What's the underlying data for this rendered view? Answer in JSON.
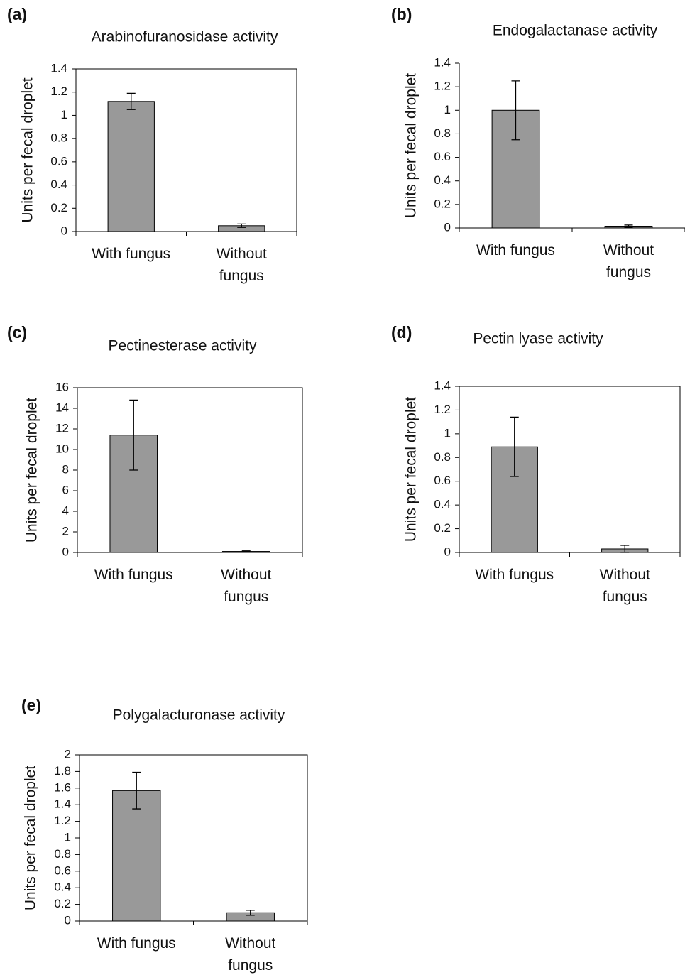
{
  "chart_data": [
    {
      "type": "bar",
      "panel": "(a)",
      "title": "Arabinofuranosidase activity",
      "ylabel": "Units per fecal droplet",
      "categories": [
        "With fungus",
        "Without fungus"
      ],
      "values": [
        1.12,
        0.05
      ],
      "errors": [
        0.07,
        0.015
      ],
      "color": "#999999",
      "ylim": [
        0,
        1.4
      ],
      "yticks": [
        0,
        0.2,
        0.4,
        0.6,
        0.8,
        1,
        1.2,
        1.4
      ],
      "frame": true
    },
    {
      "type": "bar",
      "panel": "(b)",
      "title": "Endogalactanase activity",
      "ylabel": "Units per fecal droplet",
      "categories": [
        "With fungus",
        "Without fungus"
      ],
      "values": [
        1.0,
        0.015
      ],
      "errors": [
        0.25,
        0.01
      ],
      "color": "#999999",
      "ylim": [
        0,
        1.4
      ],
      "yticks": [
        0,
        0.2,
        0.4,
        0.6,
        0.8,
        1,
        1.2,
        1.4
      ],
      "frame": false
    },
    {
      "type": "bar",
      "panel": "(c)",
      "title": "Pectinesterase activity",
      "ylabel": "Units per fecal droplet",
      "categories": [
        "With fungus",
        "Without fungus"
      ],
      "values": [
        11.4,
        0.1
      ],
      "errors": [
        3.4,
        0.05
      ],
      "color": "#999999",
      "ylim": [
        0,
        16
      ],
      "yticks": [
        0,
        2,
        4,
        6,
        8,
        10,
        12,
        14,
        16
      ],
      "frame": true
    },
    {
      "type": "bar",
      "panel": "(d)",
      "title": "Pectin lyase activity",
      "ylabel": "Units per fecal droplet",
      "categories": [
        "With fungus",
        "Without fungus"
      ],
      "values": [
        0.89,
        0.03
      ],
      "errors": [
        0.25,
        0.03
      ],
      "color": "#999999",
      "ylim": [
        0,
        1.4
      ],
      "yticks": [
        0,
        0.2,
        0.4,
        0.6,
        0.8,
        1,
        1.2,
        1.4
      ],
      "frame": true
    },
    {
      "type": "bar",
      "panel": "(e)",
      "title": "Polygalacturonase activity",
      "ylabel": "Units per fecal droplet",
      "categories": [
        "With fungus",
        "Without fungus"
      ],
      "values": [
        1.57,
        0.1
      ],
      "errors": [
        0.22,
        0.03
      ],
      "color": "#999999",
      "ylim": [
        0,
        2
      ],
      "yticks": [
        0,
        0.2,
        0.4,
        0.6,
        0.8,
        1,
        1.2,
        1.4,
        1.6,
        1.8,
        2
      ],
      "frame": true
    }
  ]
}
